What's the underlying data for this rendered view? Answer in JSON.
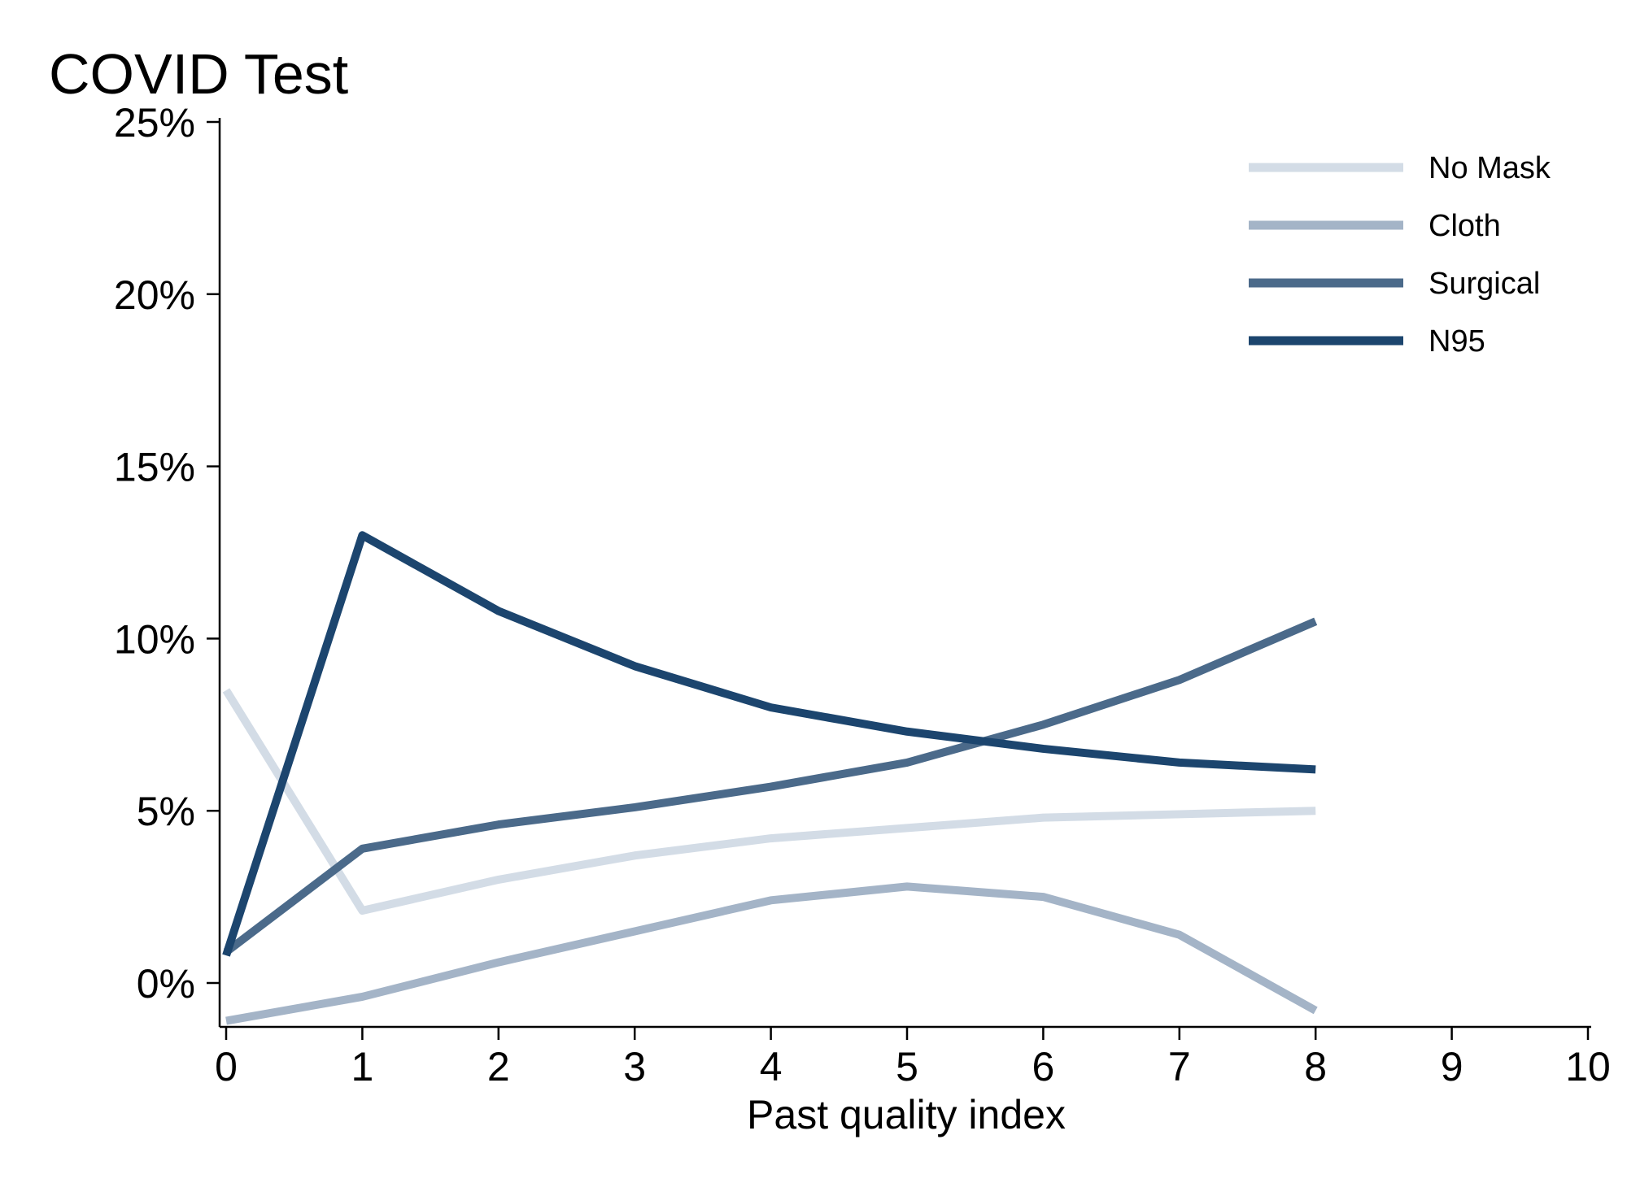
{
  "chart_data": {
    "type": "line",
    "title": "COVID Test",
    "xlabel": "Past quality index",
    "ylabel": "",
    "xlim": [
      0,
      10
    ],
    "ylim": [
      -1.25,
      25
    ],
    "x": [
      0,
      1,
      2,
      3,
      4,
      5,
      6,
      7,
      8
    ],
    "x_ticks": [
      "0",
      "1",
      "2",
      "3",
      "4",
      "5",
      "6",
      "7",
      "8",
      "9",
      "10"
    ],
    "y_ticks": [
      {
        "value": 0,
        "label": "0%"
      },
      {
        "value": 5,
        "label": "5%"
      },
      {
        "value": 10,
        "label": "10%"
      },
      {
        "value": 15,
        "label": "15%"
      },
      {
        "value": 20,
        "label": "20%"
      },
      {
        "value": 25,
        "label": "25%"
      }
    ],
    "grid": false,
    "legend_position": "top-right",
    "series": [
      {
        "name": "No Mask",
        "color": "#d3dce6",
        "values": [
          8.5,
          2.1,
          3.0,
          3.7,
          4.2,
          4.5,
          4.8,
          4.9,
          5.0
        ]
      },
      {
        "name": "Cloth",
        "color": "#a4b4c7",
        "values": [
          -1.1,
          -0.4,
          0.6,
          1.5,
          2.4,
          2.8,
          2.5,
          1.4,
          -0.8
        ]
      },
      {
        "name": "Surgical",
        "color": "#4b6a8a",
        "values": [
          0.9,
          3.9,
          4.6,
          5.1,
          5.7,
          6.4,
          7.5,
          8.8,
          10.5
        ]
      },
      {
        "name": "N95",
        "color": "#1c456e",
        "values": [
          0.8,
          13.0,
          10.8,
          9.2,
          8.0,
          7.3,
          6.8,
          6.4,
          6.2
        ]
      }
    ]
  }
}
